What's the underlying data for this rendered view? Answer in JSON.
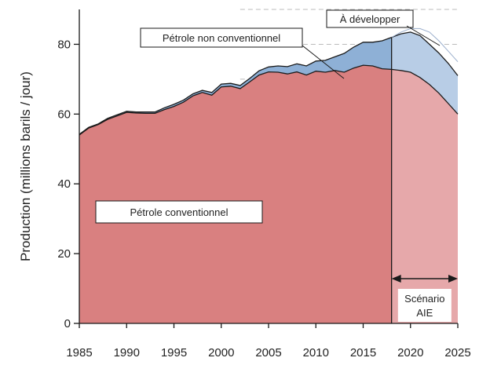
{
  "chart_data": {
    "type": "area",
    "ylabel": "Production (millions barils / jour)",
    "xlim": [
      1985,
      2025
    ],
    "ylim": [
      0,
      90
    ],
    "x_ticks": [
      1985,
      1990,
      1995,
      2000,
      2005,
      2010,
      2015,
      2020,
      2025
    ],
    "y_ticks": [
      0,
      20,
      40,
      60,
      80
    ],
    "grid": "dashed horizontal lines at 70, 80, 90 (right part)",
    "colors": {
      "conventional": "#d98080",
      "conventional_projection": "#e6a8aa",
      "unconventional": "#8eb0d6",
      "unconventional_projection": "#b8cde6",
      "line": "#1a1a1a",
      "grid": "#bbbbbb"
    },
    "projection_start": 2018,
    "series": [
      {
        "name": "Pétrole conventionnel",
        "x": [
          1985,
          1986,
          1987,
          1988,
          1989,
          1990,
          1991,
          1992,
          1993,
          1994,
          1995,
          1996,
          1997,
          1998,
          1999,
          2000,
          2001,
          2002,
          2003,
          2004,
          2005,
          2006,
          2007,
          2008,
          2009,
          2010,
          2011,
          2012,
          2013,
          2014,
          2015,
          2016,
          2017,
          2018,
          2019,
          2020,
          2021,
          2022,
          2023,
          2024,
          2025
        ],
        "values": [
          54,
          56,
          57,
          58.5,
          59.5,
          60.5,
          60.3,
          60.2,
          60.2,
          61.3,
          62.2,
          63.4,
          65.2,
          66.2,
          65.4,
          67.8,
          68,
          67.3,
          69.2,
          71.2,
          72.1,
          72,
          71.5,
          72.1,
          71.2,
          72.3,
          72,
          72.5,
          72,
          73.2,
          74,
          73.8,
          73,
          72.8,
          72.5,
          72,
          70.5,
          68.5,
          66,
          63,
          60
        ]
      },
      {
        "name": "Pétrole non conventionnel",
        "x": [
          1985,
          1986,
          1987,
          1988,
          1989,
          1990,
          1991,
          1992,
          1993,
          1994,
          1995,
          1996,
          1997,
          1998,
          1999,
          2000,
          2001,
          2002,
          2003,
          2004,
          2005,
          2006,
          2007,
          2008,
          2009,
          2010,
          2011,
          2012,
          2013,
          2014,
          2015,
          2016,
          2017,
          2018,
          2019,
          2020,
          2021,
          2022,
          2023,
          2024,
          2025
        ],
        "values": [
          54.2,
          56.2,
          57.2,
          58.8,
          59.8,
          60.8,
          60.6,
          60.6,
          60.6,
          61.8,
          62.8,
          64,
          65.8,
          66.8,
          66.2,
          68.6,
          68.8,
          68.2,
          70.2,
          72.4,
          73.5,
          73.8,
          73.6,
          74.4,
          73.8,
          75.2,
          75.4,
          76.4,
          77.4,
          79.2,
          80.6,
          80.6,
          81,
          82,
          83,
          83.5,
          82.5,
          80,
          77.5,
          74.5,
          71
        ]
      },
      {
        "name": "À développer",
        "x": [
          2018,
          2019,
          2020,
          2021,
          2022,
          2023,
          2024,
          2025
        ],
        "values": [
          82,
          83.5,
          84.5,
          84.5,
          83.5,
          81,
          78,
          75
        ]
      }
    ],
    "annotations": [
      {
        "text": "Pétrole conventionnel"
      },
      {
        "text": "Pétrole non conventionnel"
      },
      {
        "text": "À développer"
      },
      {
        "text": "Scénario"
      },
      {
        "text": "AIE"
      }
    ]
  }
}
